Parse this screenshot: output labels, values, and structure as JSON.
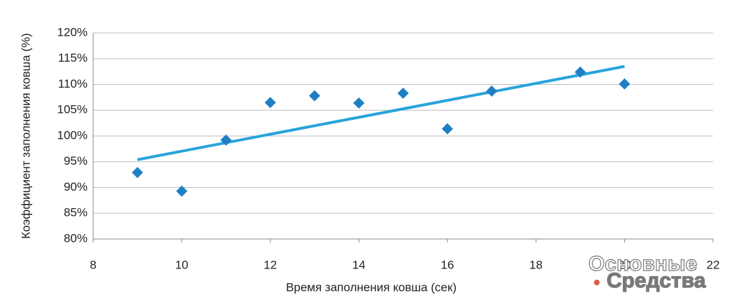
{
  "chart_data": {
    "type": "scatter",
    "x_label": "Время заполнения ковша (сек)",
    "y_label": "Коэффициент заполнения ковша (%)",
    "x": [
      9,
      10,
      11,
      12,
      13,
      14,
      15,
      16,
      17,
      19,
      20
    ],
    "values": [
      92.9,
      89.3,
      99.2,
      106.5,
      107.8,
      106.4,
      108.3,
      101.4,
      108.7,
      112.4,
      110.1
    ],
    "color": "#1f7fc4",
    "trendline": {
      "x": [
        9,
        20
      ],
      "values": [
        95.4,
        113.5
      ],
      "color": "#29a3db"
    },
    "xlim": [
      8,
      22
    ],
    "xticks": [
      8,
      10,
      12,
      14,
      16,
      18,
      20,
      22
    ],
    "ylim": [
      80,
      120
    ],
    "yticks": [
      {
        "value": 80,
        "label": "80%"
      },
      {
        "value": 85,
        "label": "85%"
      },
      {
        "value": 90,
        "label": "90%"
      },
      {
        "value": 95,
        "label": "95%"
      },
      {
        "value": 100,
        "label": "100%"
      },
      {
        "value": 105,
        "label": "105%"
      },
      {
        "value": 110,
        "label": "110%"
      },
      {
        "value": 115,
        "label": "115%"
      },
      {
        "value": 120,
        "label": "120%"
      }
    ],
    "grid": true,
    "watermark": [
      "Основные",
      "Средства"
    ]
  }
}
